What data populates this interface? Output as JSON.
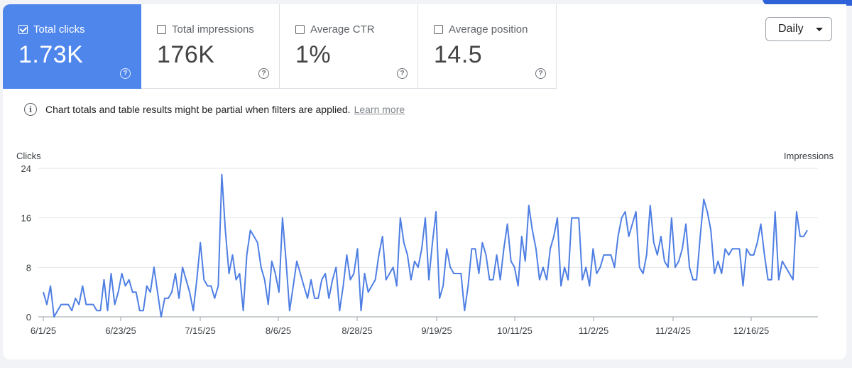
{
  "metrics": [
    {
      "label": "Total clicks",
      "value": "1.73K",
      "checked": true
    },
    {
      "label": "Total impressions",
      "value": "176K",
      "checked": false
    },
    {
      "label": "Average CTR",
      "value": "1%",
      "checked": false
    },
    {
      "label": "Average position",
      "value": "14.5",
      "checked": false
    }
  ],
  "help_glyph": "?",
  "dropdown": {
    "selected": "Daily",
    "icon": "caret-down-icon"
  },
  "notice": {
    "text": "Chart totals and table results might be partial when filters are applied.",
    "link": "Learn more",
    "icon": "info-icon"
  },
  "colors": {
    "accent": "#4f86ec",
    "line": "#4f7fe3",
    "grid": "#e3e5e8"
  },
  "chart_data": {
    "type": "line",
    "title": "",
    "ylabel": "Clicks",
    "y2label": "Impressions",
    "ylim": [
      0,
      24
    ],
    "yticks": [
      0,
      8,
      16,
      24
    ],
    "xticks": [
      "6/1/25",
      "6/23/25",
      "7/15/25",
      "8/6/25",
      "8/28/25",
      "9/19/25",
      "10/11/25",
      "11/2/25",
      "11/24/25",
      "12/16/25"
    ],
    "grid": true,
    "x_start": "6/1/25",
    "x_end": "12/30/25",
    "series": [
      {
        "name": "Clicks",
        "values": [
          4,
          2,
          5,
          0,
          1,
          2,
          2,
          2,
          1,
          3,
          2,
          5,
          2,
          2,
          2,
          1,
          1,
          6,
          1,
          7,
          2,
          4,
          7,
          5,
          6,
          4,
          4,
          1,
          1,
          5,
          4,
          8,
          4,
          0,
          3,
          3,
          4,
          7,
          3,
          8,
          6,
          4,
          1,
          6,
          12,
          6,
          5,
          5,
          3,
          5,
          23,
          14,
          7,
          10,
          6,
          7,
          1,
          10,
          14,
          13,
          12,
          8,
          6,
          2,
          9,
          7,
          4,
          16,
          9,
          1,
          5,
          9,
          7,
          5,
          3,
          6,
          3,
          3,
          6,
          7,
          3,
          6,
          8,
          1,
          5,
          10,
          6,
          7,
          11,
          1,
          7,
          4,
          5,
          6,
          10,
          13,
          6,
          7,
          8,
          5,
          16,
          12,
          10,
          6,
          9,
          8,
          11,
          16,
          6,
          12,
          17,
          3,
          5,
          11,
          8,
          7,
          7,
          7,
          1,
          5,
          11,
          11,
          7,
          12,
          10,
          6,
          6,
          10,
          6,
          11,
          15,
          9,
          8,
          5,
          13,
          9,
          18,
          14,
          11,
          6,
          8,
          6,
          11,
          13,
          16,
          5,
          8,
          6,
          16,
          16,
          16,
          6,
          8,
          5,
          11,
          7,
          8,
          10,
          10,
          10,
          8,
          13,
          16,
          17,
          13,
          15,
          17,
          8,
          7,
          10,
          18,
          12,
          10,
          13,
          9,
          8,
          16,
          8,
          9,
          11,
          15,
          8,
          6,
          6,
          13,
          19,
          17,
          14,
          7,
          9,
          7,
          11,
          10,
          11,
          11,
          11,
          5,
          11,
          10,
          10,
          12,
          15,
          10,
          6,
          6,
          17,
          6,
          9,
          8,
          7,
          6,
          17,
          13,
          13,
          14
        ]
      }
    ]
  }
}
